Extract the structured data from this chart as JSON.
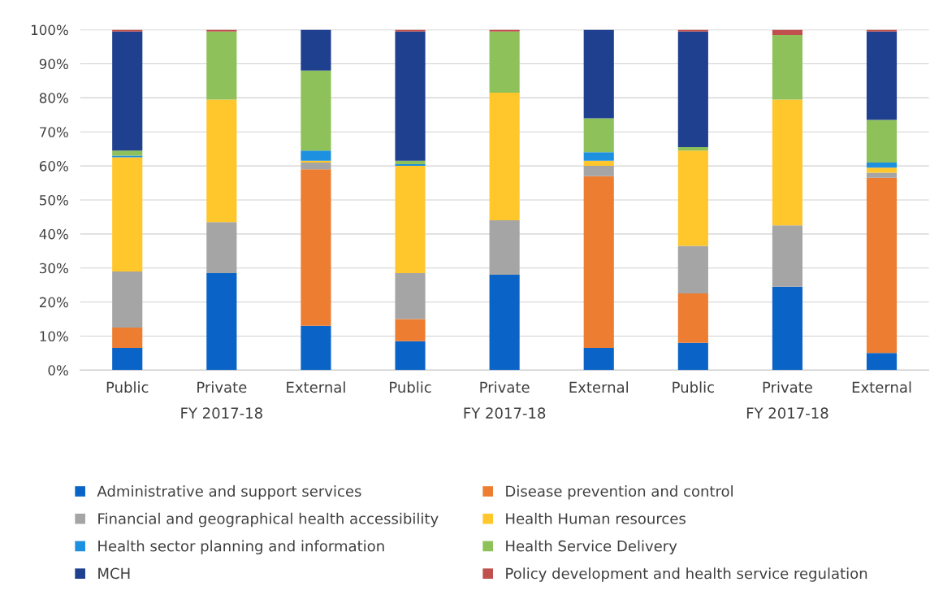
{
  "chart_data": {
    "type": "bar",
    "stacked": true,
    "categories": [
      "Public",
      "Private",
      "External",
      "Public",
      "Private",
      "External",
      "Public",
      "Private",
      "External"
    ],
    "annotations": [
      "FY 2017-18",
      "FY 2017-18",
      "FY 2017-18"
    ],
    "series": [
      {
        "name": "Administrative and support services",
        "color": "#0a64c8",
        "values": [
          6.5,
          28.5,
          13,
          8.5,
          28,
          6.5,
          8,
          24.5,
          5
        ]
      },
      {
        "name": "Disease prevention and control",
        "color": "#ed7d31",
        "values": [
          6,
          0,
          46,
          6.5,
          0,
          50.5,
          14.5,
          0,
          51.5
        ]
      },
      {
        "name": "Financial and geographical health accessibility",
        "color": "#a5a5a5",
        "values": [
          16.5,
          15,
          2,
          13.5,
          16,
          3,
          14,
          18,
          1.5
        ]
      },
      {
        "name": "Health Human resources",
        "color": "#ffc72c",
        "values": [
          33.5,
          36,
          0.5,
          31.5,
          37.5,
          1.5,
          28,
          37,
          1.5
        ]
      },
      {
        "name": "Health sector planning and information",
        "color": "#1e90e0",
        "values": [
          0.5,
          0,
          3,
          0.5,
          0,
          2.5,
          0,
          0,
          1.5
        ]
      },
      {
        "name": "Health Service Delivery",
        "color": "#8fc15a",
        "values": [
          1.5,
          20,
          23.5,
          1,
          18,
          10,
          1,
          19,
          12.5
        ]
      },
      {
        "name": "MCH",
        "color": "#1f3f8f",
        "values": [
          35,
          0,
          12,
          38,
          0,
          26,
          34,
          0,
          26
        ]
      },
      {
        "name": "Policy development and health service regulation",
        "color": "#c0504d",
        "values": [
          0.5,
          0.5,
          0,
          0.5,
          0.5,
          0,
          0.5,
          1.5,
          0.5
        ]
      }
    ],
    "ylim": [
      0,
      100
    ],
    "yticks": [
      {
        "value": 0,
        "label": "0%"
      },
      {
        "value": 10,
        "label": "10%"
      },
      {
        "value": 20,
        "label": "20%"
      },
      {
        "value": 30,
        "label": "30%"
      },
      {
        "value": 40,
        "label": "40%"
      },
      {
        "value": 50,
        "label": "50%"
      },
      {
        "value": 60,
        "label": "60%"
      },
      {
        "value": 70,
        "label": "70%"
      },
      {
        "value": 80,
        "label": "80%"
      },
      {
        "value": 90,
        "label": "90%"
      },
      {
        "value": 100,
        "label": "100%"
      }
    ],
    "grid": "y",
    "legend": "bottom"
  }
}
